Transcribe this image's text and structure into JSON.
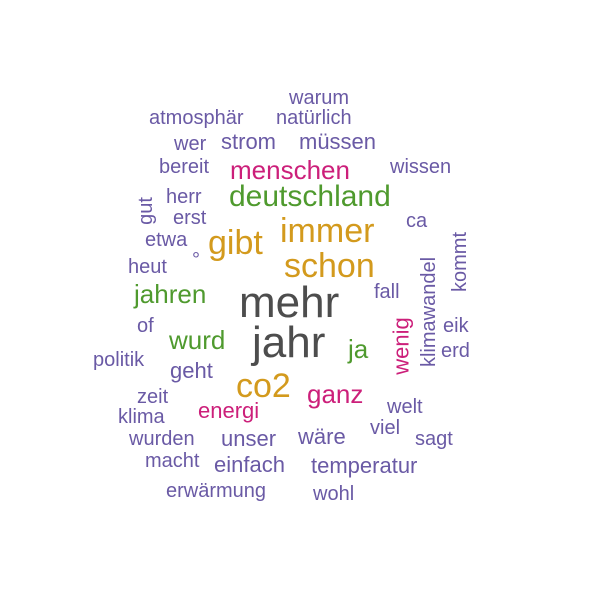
{
  "colors": {
    "purple": "#6a5aa5",
    "dark": "#4d4d4d",
    "gold": "#d39a1d",
    "green": "#4f9a2e",
    "pink": "#cc1f7a"
  },
  "words": [
    "warum",
    "atmosphär",
    "natürlich",
    "wer",
    "strom",
    "müssen",
    "bereit",
    "menschen",
    "wissen",
    "herr",
    "deutschland",
    "gut",
    "erst",
    "ca",
    "etwa",
    "gibt",
    "immer",
    "heut",
    "°",
    "schon",
    "kommt",
    "jahren",
    "fall",
    "mehr",
    "klimawandel",
    "of",
    "wenig",
    "eik",
    "wurd",
    "jahr",
    "ja",
    "erd",
    "politik",
    "geht",
    "co2",
    "zeit",
    "ganz",
    "klima",
    "energi",
    "welt",
    "viel",
    "wurden",
    "unser",
    "wäre",
    "sagt",
    "macht",
    "einfach",
    "temperatur",
    "erwärmung",
    "wohl"
  ]
}
